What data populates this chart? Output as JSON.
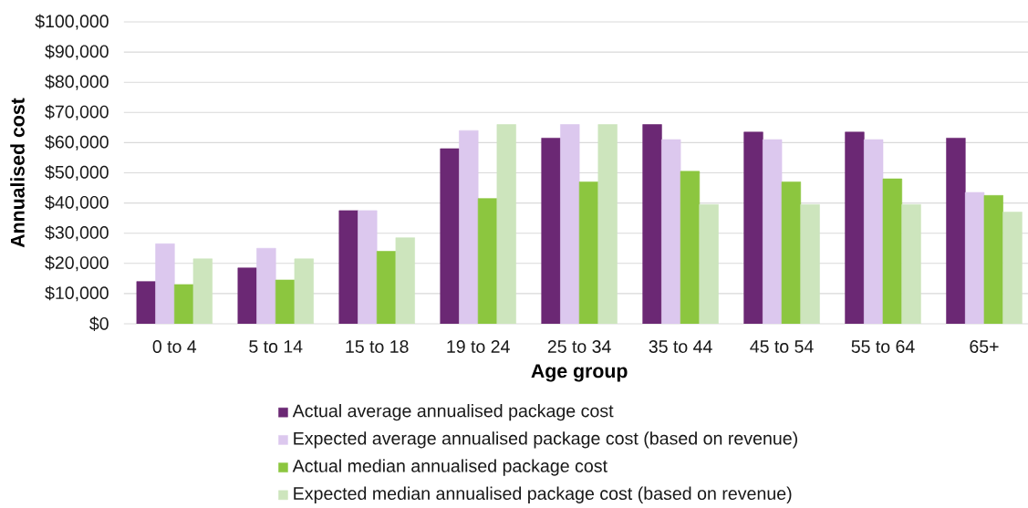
{
  "chart_data": {
    "type": "bar",
    "xlabel": "Age group",
    "ylabel": "Annualised cost",
    "categories": [
      "0 to 4",
      "5 to 14",
      "15 to 18",
      "19 to 24",
      "25 to 34",
      "35 to 44",
      "45 to 54",
      "55 to 64",
      "65+"
    ],
    "series": [
      {
        "name": "Actual average annualised package cost",
        "color": "#6b2874",
        "values": [
          14000,
          18500,
          37500,
          58000,
          61500,
          66000,
          63500,
          63500,
          61500
        ]
      },
      {
        "name": "Expected average annualised package cost (based on revenue)",
        "color": "#dcc8ee",
        "values": [
          26500,
          25000,
          37500,
          64000,
          66000,
          61000,
          61000,
          61000,
          43500
        ]
      },
      {
        "name": "Actual median annualised package cost",
        "color": "#8cc63f",
        "values": [
          13000,
          14500,
          24000,
          41500,
          47000,
          50500,
          47000,
          48000,
          42500
        ]
      },
      {
        "name": "Expected median annualised package cost (based on revenue)",
        "color": "#cde5bd",
        "values": [
          21500,
          21500,
          28500,
          66000,
          66000,
          39500,
          39500,
          39500,
          37000
        ]
      }
    ],
    "ylim": [
      0,
      100000
    ],
    "yticks": [
      {
        "value": 0,
        "label": "$0"
      },
      {
        "value": 10000,
        "label": "$10,000"
      },
      {
        "value": 20000,
        "label": "$20,000"
      },
      {
        "value": 30000,
        "label": "$30,000"
      },
      {
        "value": 40000,
        "label": "$40,000"
      },
      {
        "value": 50000,
        "label": "$50,000"
      },
      {
        "value": 60000,
        "label": "$60,000"
      },
      {
        "value": 70000,
        "label": "$70,000"
      },
      {
        "value": 80000,
        "label": "$80,000"
      },
      {
        "value": 90000,
        "label": "$90,000"
      },
      {
        "value": 100000,
        "label": "$100,000"
      }
    ],
    "grid": "y",
    "legend": "bottom"
  }
}
